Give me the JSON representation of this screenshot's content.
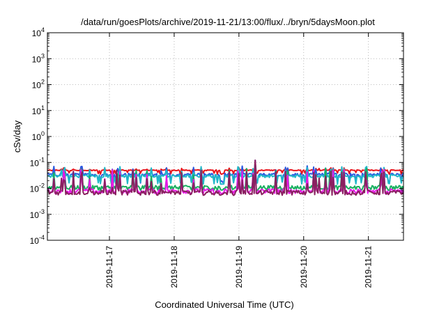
{
  "chart_data": {
    "type": "line",
    "title": "/data/run/goesPlots/archive/2019-11-21/13:00/flux/../bryn/5daysMoon.plot",
    "xlabel": "Coordinated Universal Time (UTC)",
    "ylabel": "cSv/day",
    "yscale": "log",
    "ylim": [
      0.0001,
      10000
    ],
    "y_ticks": [
      {
        "value": 10000,
        "base": "10",
        "exp": "4"
      },
      {
        "value": 1000,
        "base": "10",
        "exp": "3"
      },
      {
        "value": 100,
        "base": "10",
        "exp": "2"
      },
      {
        "value": 10,
        "base": "10",
        "exp": "1"
      },
      {
        "value": 1,
        "base": "10",
        "exp": "0"
      },
      {
        "value": 0.1,
        "base": "10",
        "exp": "-1"
      },
      {
        "value": 0.01,
        "base": "10",
        "exp": "-2"
      },
      {
        "value": 0.001,
        "base": "10",
        "exp": "-3"
      },
      {
        "value": 0.0001,
        "base": "10",
        "exp": "-4"
      }
    ],
    "xlim": [
      "2019-11-16 01:00",
      "2019-11-21 13:00"
    ],
    "x_ticks": [
      "2019-11-17",
      "2019-11-18",
      "2019-11-19",
      "2019-11-20",
      "2019-11-21"
    ],
    "grid": true,
    "series": [
      {
        "color": "#e8141c",
        "base": 0.05,
        "dip": 0.038,
        "spike": 0.062,
        "noise": 0.08
      },
      {
        "color": "#2a58e0",
        "base": 0.034,
        "dip": 0.018,
        "spike": 0.075,
        "noise": 0.25
      },
      {
        "color": "#20b8c8",
        "base": 0.03,
        "dip": 0.016,
        "spike": 0.07,
        "noise": 0.25
      },
      {
        "color": "#18b060",
        "base": 0.011,
        "dip": 0.009,
        "spike": 0.06,
        "noise": 0.35
      },
      {
        "color": "#e818e8",
        "base": 0.008,
        "dip": 0.0065,
        "spike": 0.055,
        "noise": 0.4
      },
      {
        "color": "#8a2060",
        "base": 0.007,
        "dip": 0.006,
        "spike": 0.05,
        "noise": 0.4
      }
    ]
  }
}
